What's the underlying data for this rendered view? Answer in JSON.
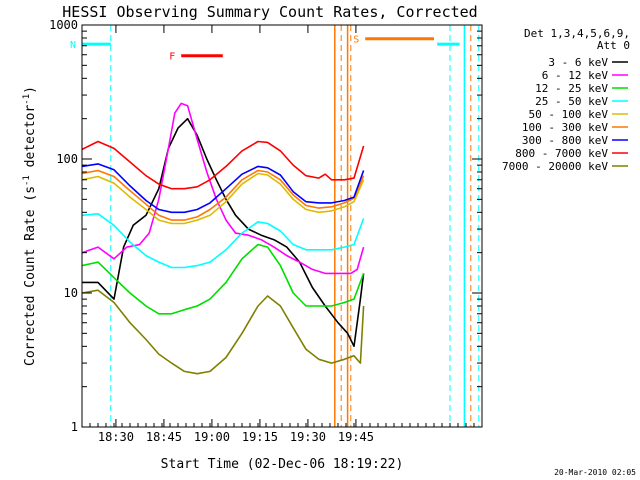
{
  "chart_data": {
    "type": "line",
    "title": "HESSI Observing Summary Count Rates, Corrected",
    "xlabel": "Start Time (02-Dec-06 18:19:22)",
    "ylabel_main": "Corrected Count Rate (s",
    "ylabel_exp1": "-1",
    "ylabel_mid": " detector",
    "ylabel_exp2": "-1",
    "ylabel_end": ")",
    "y_scale": "log",
    "ylim": [
      1,
      1000
    ],
    "xlim_minutes": [
      0,
      125
    ],
    "x_ticks": [
      {
        "label": "18:30",
        "t": 10.6
      },
      {
        "label": "18:45",
        "t": 25.6
      },
      {
        "label": "19:00",
        "t": 40.6
      },
      {
        "label": "19:15",
        "t": 55.6
      },
      {
        "label": "19:30",
        "t": 70.6
      },
      {
        "label": "19:45",
        "t": 85.6
      }
    ],
    "y_ticks": [
      {
        "label": "1",
        "v": 1
      },
      {
        "label": "10",
        "v": 10
      },
      {
        "label": "100",
        "v": 100
      },
      {
        "label": "1000",
        "v": 1000
      }
    ],
    "legend": {
      "placement": "right",
      "header": [
        "Det 1,3,4,5,6,9,",
        "Att 0"
      ]
    },
    "series": [
      {
        "name": "3 - 6 keV",
        "color": "#000000",
        "points": [
          [
            0,
            12
          ],
          [
            5,
            12
          ],
          [
            10,
            9
          ],
          [
            13,
            22
          ],
          [
            16,
            32
          ],
          [
            20,
            38
          ],
          [
            24,
            60
          ],
          [
            27,
            120
          ],
          [
            30,
            170
          ],
          [
            33,
            200
          ],
          [
            36,
            150
          ],
          [
            39,
            100
          ],
          [
            42,
            70
          ],
          [
            45,
            50
          ],
          [
            48,
            38
          ],
          [
            52,
            30
          ],
          [
            56,
            27
          ],
          [
            60,
            25
          ],
          [
            64,
            22
          ],
          [
            68,
            17
          ],
          [
            72,
            11
          ],
          [
            76,
            8
          ],
          [
            80,
            6
          ],
          [
            83,
            5
          ],
          [
            85,
            4
          ],
          [
            87,
            9
          ],
          [
            88,
            14
          ]
        ]
      },
      {
        "name": "6 - 12 keV",
        "color": "#ff00ff",
        "points": [
          [
            0,
            20
          ],
          [
            5,
            22
          ],
          [
            10,
            18
          ],
          [
            14,
            22
          ],
          [
            18,
            23
          ],
          [
            21,
            28
          ],
          [
            24,
            50
          ],
          [
            27,
            120
          ],
          [
            29,
            220
          ],
          [
            31,
            260
          ],
          [
            33,
            250
          ],
          [
            36,
            140
          ],
          [
            39,
            80
          ],
          [
            42,
            50
          ],
          [
            45,
            35
          ],
          [
            48,
            28
          ],
          [
            52,
            27
          ],
          [
            56,
            25
          ],
          [
            60,
            22
          ],
          [
            64,
            19
          ],
          [
            68,
            17
          ],
          [
            72,
            15
          ],
          [
            76,
            14
          ],
          [
            80,
            14
          ],
          [
            84,
            14
          ],
          [
            86,
            15
          ],
          [
            88,
            22
          ]
        ]
      },
      {
        "name": "12 - 25 keV",
        "color": "#00dd00",
        "points": [
          [
            0,
            16
          ],
          [
            5,
            17
          ],
          [
            10,
            13
          ],
          [
            15,
            10
          ],
          [
            20,
            8
          ],
          [
            24,
            7
          ],
          [
            28,
            7
          ],
          [
            32,
            7.5
          ],
          [
            36,
            8
          ],
          [
            40,
            9
          ],
          [
            45,
            12
          ],
          [
            50,
            18
          ],
          [
            55,
            23
          ],
          [
            58,
            22
          ],
          [
            62,
            16
          ],
          [
            66,
            10
          ],
          [
            70,
            8
          ],
          [
            74,
            8
          ],
          [
            78,
            8
          ],
          [
            82,
            8.5
          ],
          [
            85,
            9
          ],
          [
            88,
            14
          ]
        ]
      },
      {
        "name": "25 - 50 keV",
        "color": "#00ffff",
        "points": [
          [
            0,
            38
          ],
          [
            5,
            39
          ],
          [
            10,
            32
          ],
          [
            15,
            24
          ],
          [
            20,
            19
          ],
          [
            24,
            17
          ],
          [
            28,
            15.5
          ],
          [
            32,
            15.5
          ],
          [
            36,
            16
          ],
          [
            40,
            17
          ],
          [
            45,
            21
          ],
          [
            50,
            28
          ],
          [
            55,
            34
          ],
          [
            58,
            33
          ],
          [
            62,
            29
          ],
          [
            66,
            23
          ],
          [
            70,
            21
          ],
          [
            74,
            21
          ],
          [
            78,
            21
          ],
          [
            82,
            22
          ],
          [
            85,
            23
          ],
          [
            88,
            36
          ]
        ]
      },
      {
        "name": "50 - 100 keV",
        "color": "#ddbb00",
        "points": [
          [
            0,
            70
          ],
          [
            5,
            74
          ],
          [
            10,
            66
          ],
          [
            15,
            52
          ],
          [
            20,
            42
          ],
          [
            24,
            35
          ],
          [
            28,
            33
          ],
          [
            32,
            33
          ],
          [
            36,
            35
          ],
          [
            40,
            38
          ],
          [
            45,
            48
          ],
          [
            50,
            65
          ],
          [
            55,
            78
          ],
          [
            58,
            76
          ],
          [
            62,
            65
          ],
          [
            66,
            50
          ],
          [
            70,
            42
          ],
          [
            74,
            40
          ],
          [
            78,
            41
          ],
          [
            82,
            44
          ],
          [
            85,
            48
          ],
          [
            88,
            70
          ]
        ]
      },
      {
        "name": "100 - 300 keV",
        "color": "#ff7700",
        "points": [
          [
            0,
            78
          ],
          [
            5,
            82
          ],
          [
            10,
            74
          ],
          [
            15,
            58
          ],
          [
            20,
            46
          ],
          [
            24,
            38
          ],
          [
            28,
            35
          ],
          [
            32,
            35
          ],
          [
            36,
            37
          ],
          [
            40,
            42
          ],
          [
            45,
            52
          ],
          [
            50,
            70
          ],
          [
            55,
            82
          ],
          [
            58,
            80
          ],
          [
            62,
            70
          ],
          [
            66,
            54
          ],
          [
            70,
            45
          ],
          [
            74,
            43
          ],
          [
            78,
            44
          ],
          [
            82,
            47
          ],
          [
            85,
            51
          ],
          [
            88,
            75
          ]
        ]
      },
      {
        "name": "300 - 800 keV",
        "color": "#0000ff",
        "points": [
          [
            0,
            88
          ],
          [
            5,
            92
          ],
          [
            10,
            83
          ],
          [
            15,
            63
          ],
          [
            20,
            49
          ],
          [
            24,
            42
          ],
          [
            28,
            40
          ],
          [
            32,
            40
          ],
          [
            36,
            42
          ],
          [
            40,
            47
          ],
          [
            45,
            60
          ],
          [
            50,
            77
          ],
          [
            55,
            88
          ],
          [
            58,
            86
          ],
          [
            62,
            76
          ],
          [
            66,
            57
          ],
          [
            70,
            48
          ],
          [
            74,
            47
          ],
          [
            78,
            47
          ],
          [
            82,
            49
          ],
          [
            85,
            52
          ],
          [
            88,
            82
          ]
        ]
      },
      {
        "name": "800 - 7000 keV",
        "color": "#ff0000",
        "points": [
          [
            0,
            118
          ],
          [
            5,
            135
          ],
          [
            10,
            120
          ],
          [
            15,
            95
          ],
          [
            20,
            75
          ],
          [
            24,
            65
          ],
          [
            28,
            60
          ],
          [
            32,
            60
          ],
          [
            36,
            62
          ],
          [
            40,
            70
          ],
          [
            45,
            88
          ],
          [
            50,
            115
          ],
          [
            55,
            135
          ],
          [
            58,
            133
          ],
          [
            62,
            115
          ],
          [
            66,
            90
          ],
          [
            70,
            75
          ],
          [
            74,
            72
          ],
          [
            76,
            77
          ],
          [
            78,
            70
          ],
          [
            82,
            70
          ],
          [
            85,
            72
          ],
          [
            88,
            125
          ]
        ]
      },
      {
        "name": "7000 - 20000 keV",
        "color": "#808000",
        "points": [
          [
            0,
            10
          ],
          [
            5,
            10.5
          ],
          [
            10,
            8.5
          ],
          [
            15,
            6
          ],
          [
            20,
            4.5
          ],
          [
            24,
            3.5
          ],
          [
            28,
            3
          ],
          [
            32,
            2.6
          ],
          [
            36,
            2.5
          ],
          [
            40,
            2.6
          ],
          [
            45,
            3.3
          ],
          [
            50,
            5
          ],
          [
            55,
            8
          ],
          [
            58,
            9.5
          ],
          [
            62,
            8
          ],
          [
            66,
            5.5
          ],
          [
            70,
            3.8
          ],
          [
            74,
            3.2
          ],
          [
            78,
            3
          ],
          [
            82,
            3.2
          ],
          [
            85,
            3.4
          ],
          [
            87,
            3
          ],
          [
            88,
            8
          ]
        ]
      }
    ],
    "annotations": [
      {
        "label": "N",
        "color": "#00ffff",
        "bar": [
          0,
          9
        ],
        "value": 720,
        "marker": 9
      },
      {
        "label": "F",
        "color": "#ff0000",
        "bar": [
          31,
          44
        ],
        "value": 590
      },
      {
        "label": "S",
        "color": "#ff7700",
        "bar": [
          88.5,
          110
        ],
        "value": 790
      },
      {
        "label": "",
        "color": "#00ffff",
        "bar": [
          111,
          118
        ],
        "value": 720,
        "marker": 115
      }
    ],
    "vertical_markers": [
      {
        "color": "#ff7700",
        "t": 79,
        "dashed": false
      },
      {
        "color": "#ff7700",
        "t": 81,
        "dashed": true
      },
      {
        "color": "#ff7700",
        "t": 83,
        "dashed": false
      },
      {
        "color": "#ff7700",
        "t": 84,
        "dashed": true
      },
      {
        "color": "#ff7700",
        "t": 121.5,
        "dashed": true
      },
      {
        "color": "#00ffff",
        "t": 119.5,
        "dashed": false
      },
      {
        "color": "#00ffff",
        "t": 124,
        "dashed": true
      }
    ],
    "grid": false
  },
  "footer_timestamp": "20-Mar-2010 02:05"
}
